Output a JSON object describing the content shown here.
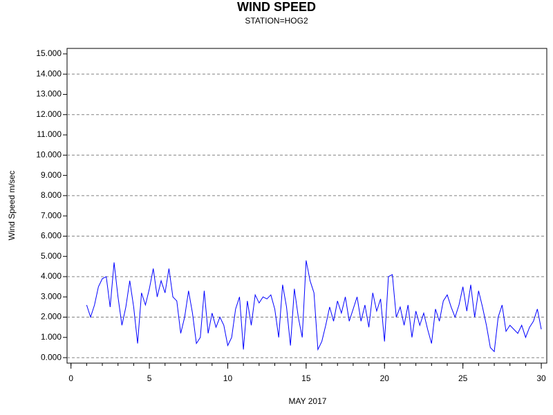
{
  "chart_data": {
    "type": "line",
    "title": "WIND SPEED",
    "subtitle": "STATION=HOG2",
    "xlabel": "MAY 2017",
    "ylabel": "Wind Speed m/sec",
    "x": [
      1.0,
      1.25,
      1.5,
      1.75,
      2.0,
      2.25,
      2.5,
      2.75,
      3.0,
      3.25,
      3.5,
      3.75,
      4.0,
      4.25,
      4.5,
      4.75,
      5.0,
      5.25,
      5.5,
      5.75,
      6.0,
      6.25,
      6.5,
      6.75,
      7.0,
      7.25,
      7.5,
      7.75,
      8.0,
      8.25,
      8.5,
      8.75,
      9.0,
      9.25,
      9.5,
      9.75,
      10.0,
      10.25,
      10.5,
      10.75,
      11.0,
      11.25,
      11.5,
      11.75,
      12.0,
      12.25,
      12.5,
      12.75,
      13.0,
      13.25,
      13.5,
      13.75,
      14.0,
      14.25,
      14.5,
      14.75,
      15.0,
      15.25,
      15.5,
      15.75,
      16.0,
      16.25,
      16.5,
      16.75,
      17.0,
      17.25,
      17.5,
      17.75,
      18.0,
      18.25,
      18.5,
      18.75,
      19.0,
      19.25,
      19.5,
      19.75,
      20.0,
      20.25,
      20.5,
      20.75,
      21.0,
      21.25,
      21.5,
      21.75,
      22.0,
      22.25,
      22.5,
      22.75,
      23.0,
      23.25,
      23.5,
      23.75,
      24.0,
      24.25,
      24.5,
      24.75,
      25.0,
      25.25,
      25.5,
      25.75,
      26.0,
      26.25,
      26.5,
      26.75,
      27.0,
      27.25,
      27.5,
      27.75,
      28.0,
      28.25,
      28.5,
      28.75,
      29.0,
      29.25,
      29.5,
      29.75,
      30.0
    ],
    "series": [
      {
        "name": "Wind Speed",
        "color": "#0000ff",
        "values": [
          2.6,
          2.0,
          2.6,
          3.5,
          3.9,
          4.0,
          2.5,
          4.7,
          3.0,
          1.6,
          2.5,
          3.8,
          2.5,
          0.7,
          3.2,
          2.6,
          3.4,
          4.4,
          3.0,
          3.8,
          3.2,
          4.4,
          3.0,
          2.8,
          1.2,
          2.0,
          3.3,
          2.2,
          0.7,
          1.0,
          3.3,
          1.2,
          2.2,
          1.5,
          2.0,
          1.6,
          0.6,
          1.0,
          2.4,
          3.0,
          0.4,
          2.8,
          1.6,
          3.1,
          2.7,
          3.0,
          2.9,
          3.1,
          2.4,
          1.0,
          3.6,
          2.5,
          0.6,
          3.4,
          2.0,
          1.0,
          4.8,
          3.8,
          3.2,
          0.4,
          0.8,
          1.6,
          2.5,
          1.8,
          2.8,
          2.2,
          3.0,
          1.8,
          2.4,
          3.0,
          1.8,
          2.6,
          1.5,
          3.2,
          2.3,
          2.9,
          0.8,
          4.0,
          4.1,
          2.0,
          2.5,
          1.6,
          2.6,
          1.0,
          2.3,
          1.6,
          2.2,
          1.4,
          0.7,
          2.4,
          1.8,
          2.8,
          3.1,
          2.5,
          2.0,
          2.6,
          3.5,
          2.3,
          3.6,
          2.0,
          3.3,
          2.5,
          1.6,
          0.5,
          0.3,
          2.0,
          2.6,
          1.3,
          1.6,
          1.4,
          1.2,
          1.6,
          1.0,
          1.5,
          1.8,
          2.4,
          1.4
        ]
      }
    ],
    "xlim": [
      -0.25,
      30.35
    ],
    "xticks": [
      0,
      5,
      10,
      15,
      20,
      25,
      30
    ],
    "xminorticks": [
      0,
      1,
      2,
      3,
      4,
      5,
      6,
      7,
      8,
      9,
      10,
      11,
      12,
      13,
      14,
      15,
      16,
      17,
      18,
      19,
      20,
      21,
      22,
      23,
      24,
      25,
      26,
      27,
      28,
      29,
      30
    ],
    "ylim": [
      -0.27,
      15.27
    ],
    "yticks": [
      {
        "value": 0,
        "label": "0.000"
      },
      {
        "value": 1,
        "label": "1.000"
      },
      {
        "value": 2,
        "label": "2.000"
      },
      {
        "value": 3,
        "label": "3.000"
      },
      {
        "value": 4,
        "label": "4.000"
      },
      {
        "value": 5,
        "label": "5.000"
      },
      {
        "value": 6,
        "label": "6.000"
      },
      {
        "value": 7,
        "label": "7.000"
      },
      {
        "value": 8,
        "label": "8.000"
      },
      {
        "value": 9,
        "label": "9.000"
      },
      {
        "value": 10,
        "label": "10.000"
      },
      {
        "value": 11,
        "label": "11.000"
      },
      {
        "value": 12,
        "label": "12.000"
      },
      {
        "value": 13,
        "label": "13.000"
      },
      {
        "value": 14,
        "label": "14.000"
      },
      {
        "value": 15,
        "label": "15.000"
      }
    ],
    "gridlines": [
      0,
      2,
      4,
      6,
      8,
      10,
      12,
      14
    ]
  }
}
